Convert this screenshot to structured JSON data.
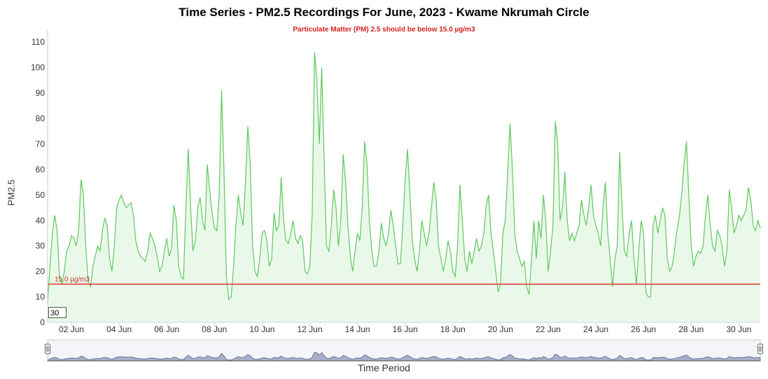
{
  "chart_data": {
    "type": "area",
    "title": "Time Series - PM2.5 Recordings For June, 2023 - Kwame Nkrumah Circle",
    "subtitle": "Particulate Matter (PM) 2.5 should be below 15.0 µg/m3",
    "xlabel": "Time Period",
    "ylabel": "PM2.5",
    "ylim": [
      0,
      115
    ],
    "xlim": [
      1.0,
      30.9
    ],
    "y_ticks": [
      0,
      10,
      20,
      30,
      40,
      50,
      60,
      70,
      80,
      90,
      100,
      110
    ],
    "x_ticks": [
      {
        "day": 2,
        "label": "02 Jun"
      },
      {
        "day": 4,
        "label": "04 Jun"
      },
      {
        "day": 6,
        "label": "06 Jun"
      },
      {
        "day": 8,
        "label": "08 Jun"
      },
      {
        "day": 10,
        "label": "10 Jun"
      },
      {
        "day": 12,
        "label": "12 Jun"
      },
      {
        "day": 14,
        "label": "14 Jun"
      },
      {
        "day": 16,
        "label": "16 Jun"
      },
      {
        "day": 18,
        "label": "18 Jun"
      },
      {
        "day": 20,
        "label": "20 Jun"
      },
      {
        "day": 22,
        "label": "22 Jun"
      },
      {
        "day": 24,
        "label": "24 Jun"
      },
      {
        "day": 26,
        "label": "26 Jun"
      },
      {
        "day": 28,
        "label": "28 Jun"
      },
      {
        "day": 30,
        "label": "30 Jun"
      }
    ],
    "threshold": {
      "value": 15.0,
      "label": "15.0 µg/m3",
      "color": "#e8352a"
    },
    "series": [
      {
        "color": "#5cc95c",
        "fill": "#eaf8ea",
        "x_unit": "day of June 2023",
        "points": [
          [
            1.0,
            8
          ],
          [
            1.1,
            22
          ],
          [
            1.2,
            35
          ],
          [
            1.3,
            42
          ],
          [
            1.4,
            36
          ],
          [
            1.5,
            18
          ],
          [
            1.6,
            15
          ],
          [
            1.7,
            20
          ],
          [
            1.8,
            28
          ],
          [
            1.9,
            30
          ],
          [
            2.0,
            34
          ],
          [
            2.1,
            33
          ],
          [
            2.2,
            30
          ],
          [
            2.3,
            36
          ],
          [
            2.4,
            56
          ],
          [
            2.5,
            50
          ],
          [
            2.6,
            30
          ],
          [
            2.7,
            16
          ],
          [
            2.8,
            14
          ],
          [
            2.9,
            22
          ],
          [
            3.0,
            26
          ],
          [
            3.1,
            30
          ],
          [
            3.2,
            28
          ],
          [
            3.3,
            36
          ],
          [
            3.4,
            41
          ],
          [
            3.5,
            38
          ],
          [
            3.6,
            25
          ],
          [
            3.7,
            20
          ],
          [
            3.8,
            30
          ],
          [
            3.9,
            45
          ],
          [
            4.0,
            48
          ],
          [
            4.1,
            50
          ],
          [
            4.2,
            47
          ],
          [
            4.3,
            45
          ],
          [
            4.4,
            46
          ],
          [
            4.5,
            47
          ],
          [
            4.6,
            42
          ],
          [
            4.7,
            32
          ],
          [
            4.8,
            28
          ],
          [
            4.9,
            26
          ],
          [
            5.0,
            25
          ],
          [
            5.1,
            24
          ],
          [
            5.2,
            28
          ],
          [
            5.3,
            35
          ],
          [
            5.4,
            33
          ],
          [
            5.5,
            30
          ],
          [
            5.6,
            26
          ],
          [
            5.7,
            20
          ],
          [
            5.8,
            22
          ],
          [
            5.9,
            28
          ],
          [
            6.0,
            33
          ],
          [
            6.1,
            26
          ],
          [
            6.2,
            29
          ],
          [
            6.3,
            46
          ],
          [
            6.4,
            40
          ],
          [
            6.5,
            22
          ],
          [
            6.6,
            18
          ],
          [
            6.7,
            17
          ],
          [
            6.8,
            45
          ],
          [
            6.9,
            68
          ],
          [
            7.0,
            45
          ],
          [
            7.1,
            28
          ],
          [
            7.2,
            32
          ],
          [
            7.3,
            45
          ],
          [
            7.4,
            49
          ],
          [
            7.5,
            40
          ],
          [
            7.6,
            36
          ],
          [
            7.7,
            62
          ],
          [
            7.8,
            52
          ],
          [
            7.9,
            43
          ],
          [
            8.0,
            37
          ],
          [
            8.1,
            36
          ],
          [
            8.2,
            50
          ],
          [
            8.3,
            91
          ],
          [
            8.4,
            60
          ],
          [
            8.5,
            18
          ],
          [
            8.6,
            9
          ],
          [
            8.7,
            10
          ],
          [
            8.8,
            22
          ],
          [
            8.9,
            38
          ],
          [
            9.0,
            50
          ],
          [
            9.1,
            43
          ],
          [
            9.2,
            38
          ],
          [
            9.3,
            55
          ],
          [
            9.4,
            77
          ],
          [
            9.5,
            62
          ],
          [
            9.6,
            30
          ],
          [
            9.7,
            20
          ],
          [
            9.8,
            18
          ],
          [
            9.9,
            25
          ],
          [
            10.0,
            35
          ],
          [
            10.1,
            36
          ],
          [
            10.2,
            32
          ],
          [
            10.3,
            22
          ],
          [
            10.4,
            25
          ],
          [
            10.5,
            43
          ],
          [
            10.6,
            36
          ],
          [
            10.7,
            38
          ],
          [
            10.8,
            57
          ],
          [
            10.9,
            40
          ],
          [
            11.0,
            32
          ],
          [
            11.1,
            31
          ],
          [
            11.2,
            35
          ],
          [
            11.3,
            40
          ],
          [
            11.4,
            33
          ],
          [
            11.5,
            31
          ],
          [
            11.6,
            34
          ],
          [
            11.7,
            32
          ],
          [
            11.8,
            20
          ],
          [
            11.9,
            19
          ],
          [
            12.0,
            22
          ],
          [
            12.1,
            42
          ],
          [
            12.2,
            106
          ],
          [
            12.3,
            95
          ],
          [
            12.4,
            70
          ],
          [
            12.5,
            100
          ],
          [
            12.6,
            65
          ],
          [
            12.7,
            30
          ],
          [
            12.8,
            28
          ],
          [
            12.9,
            38
          ],
          [
            13.0,
            52
          ],
          [
            13.1,
            45
          ],
          [
            13.2,
            30
          ],
          [
            13.3,
            40
          ],
          [
            13.4,
            66
          ],
          [
            13.5,
            55
          ],
          [
            13.6,
            38
          ],
          [
            13.7,
            26
          ],
          [
            13.8,
            20
          ],
          [
            13.9,
            28
          ],
          [
            14.0,
            35
          ],
          [
            14.1,
            32
          ],
          [
            14.2,
            45
          ],
          [
            14.3,
            71
          ],
          [
            14.4,
            62
          ],
          [
            14.5,
            40
          ],
          [
            14.6,
            28
          ],
          [
            14.7,
            22
          ],
          [
            14.8,
            22
          ],
          [
            14.9,
            28
          ],
          [
            15.0,
            39
          ],
          [
            15.1,
            33
          ],
          [
            15.2,
            30
          ],
          [
            15.3,
            35
          ],
          [
            15.4,
            44
          ],
          [
            15.5,
            38
          ],
          [
            15.6,
            30
          ],
          [
            15.7,
            23
          ],
          [
            15.8,
            23
          ],
          [
            15.9,
            38
          ],
          [
            16.0,
            56
          ],
          [
            16.1,
            68
          ],
          [
            16.2,
            50
          ],
          [
            16.3,
            32
          ],
          [
            16.4,
            25
          ],
          [
            16.5,
            20
          ],
          [
            16.6,
            28
          ],
          [
            16.7,
            40
          ],
          [
            16.8,
            35
          ],
          [
            16.9,
            30
          ],
          [
            17.0,
            35
          ],
          [
            17.1,
            45
          ],
          [
            17.2,
            55
          ],
          [
            17.3,
            48
          ],
          [
            17.4,
            30
          ],
          [
            17.5,
            25
          ],
          [
            17.6,
            20
          ],
          [
            17.7,
            25
          ],
          [
            17.8,
            32
          ],
          [
            17.9,
            28
          ],
          [
            18.0,
            20
          ],
          [
            18.1,
            18
          ],
          [
            18.2,
            30
          ],
          [
            18.3,
            54
          ],
          [
            18.4,
            40
          ],
          [
            18.5,
            25
          ],
          [
            18.6,
            20
          ],
          [
            18.7,
            28
          ],
          [
            18.8,
            23
          ],
          [
            18.9,
            28
          ],
          [
            19.0,
            33
          ],
          [
            19.1,
            28
          ],
          [
            19.2,
            30
          ],
          [
            19.3,
            35
          ],
          [
            19.4,
            46
          ],
          [
            19.5,
            50
          ],
          [
            19.6,
            35
          ],
          [
            19.7,
            28
          ],
          [
            19.8,
            20
          ],
          [
            19.9,
            12
          ],
          [
            20.0,
            15
          ],
          [
            20.1,
            35
          ],
          [
            20.2,
            40
          ],
          [
            20.3,
            58
          ],
          [
            20.4,
            78
          ],
          [
            20.5,
            60
          ],
          [
            20.6,
            35
          ],
          [
            20.7,
            28
          ],
          [
            20.8,
            25
          ],
          [
            20.9,
            22
          ],
          [
            21.0,
            24
          ],
          [
            21.1,
            14
          ],
          [
            21.2,
            11
          ],
          [
            21.3,
            25
          ],
          [
            21.4,
            40
          ],
          [
            21.5,
            25
          ],
          [
            21.6,
            40
          ],
          [
            21.7,
            33
          ],
          [
            21.8,
            50
          ],
          [
            21.9,
            40
          ],
          [
            22.0,
            20
          ],
          [
            22.1,
            28
          ],
          [
            22.2,
            38
          ],
          [
            22.3,
            79
          ],
          [
            22.4,
            70
          ],
          [
            22.5,
            40
          ],
          [
            22.6,
            45
          ],
          [
            22.7,
            59
          ],
          [
            22.8,
            40
          ],
          [
            22.9,
            32
          ],
          [
            23.0,
            35
          ],
          [
            23.1,
            32
          ],
          [
            23.2,
            35
          ],
          [
            23.3,
            38
          ],
          [
            23.4,
            48
          ],
          [
            23.5,
            42
          ],
          [
            23.6,
            38
          ],
          [
            23.7,
            45
          ],
          [
            23.8,
            54
          ],
          [
            23.9,
            42
          ],
          [
            24.0,
            38
          ],
          [
            24.1,
            35
          ],
          [
            24.2,
            30
          ],
          [
            24.3,
            45
          ],
          [
            24.4,
            55
          ],
          [
            24.5,
            35
          ],
          [
            24.6,
            25
          ],
          [
            24.7,
            14
          ],
          [
            24.8,
            25
          ],
          [
            24.9,
            30
          ],
          [
            25.0,
            67
          ],
          [
            25.1,
            45
          ],
          [
            25.2,
            28
          ],
          [
            25.3,
            26
          ],
          [
            25.4,
            35
          ],
          [
            25.5,
            40
          ],
          [
            25.6,
            25
          ],
          [
            25.7,
            15
          ],
          [
            25.8,
            28
          ],
          [
            25.9,
            40
          ],
          [
            26.0,
            35
          ],
          [
            26.1,
            12
          ],
          [
            26.2,
            10
          ],
          [
            26.3,
            10
          ],
          [
            26.4,
            38
          ],
          [
            26.5,
            42
          ],
          [
            26.6,
            35
          ],
          [
            26.7,
            40
          ],
          [
            26.8,
            45
          ],
          [
            26.9,
            42
          ],
          [
            27.0,
            25
          ],
          [
            27.1,
            20
          ],
          [
            27.2,
            22
          ],
          [
            27.3,
            28
          ],
          [
            27.4,
            36
          ],
          [
            27.5,
            41
          ],
          [
            27.6,
            50
          ],
          [
            27.7,
            62
          ],
          [
            27.8,
            71
          ],
          [
            27.9,
            50
          ],
          [
            28.0,
            30
          ],
          [
            28.1,
            22
          ],
          [
            28.2,
            26
          ],
          [
            28.3,
            28
          ],
          [
            28.4,
            27
          ],
          [
            28.5,
            30
          ],
          [
            28.6,
            42
          ],
          [
            28.7,
            50
          ],
          [
            28.8,
            38
          ],
          [
            28.9,
            30
          ],
          [
            29.0,
            28
          ],
          [
            29.1,
            36
          ],
          [
            29.2,
            34
          ],
          [
            29.3,
            30
          ],
          [
            29.4,
            22
          ],
          [
            29.5,
            28
          ],
          [
            29.6,
            52
          ],
          [
            29.7,
            45
          ],
          [
            29.8,
            35
          ],
          [
            29.9,
            38
          ],
          [
            30.0,
            42
          ],
          [
            30.1,
            40
          ],
          [
            30.2,
            42
          ],
          [
            30.3,
            44
          ],
          [
            30.4,
            53
          ],
          [
            30.5,
            48
          ],
          [
            30.6,
            38
          ],
          [
            30.7,
            36
          ],
          [
            30.8,
            40
          ],
          [
            30.9,
            37
          ]
        ]
      }
    ],
    "range_selector": {
      "value": "30"
    },
    "navigator": true,
    "grid": {
      "horizontal": false,
      "vertical": false
    }
  }
}
